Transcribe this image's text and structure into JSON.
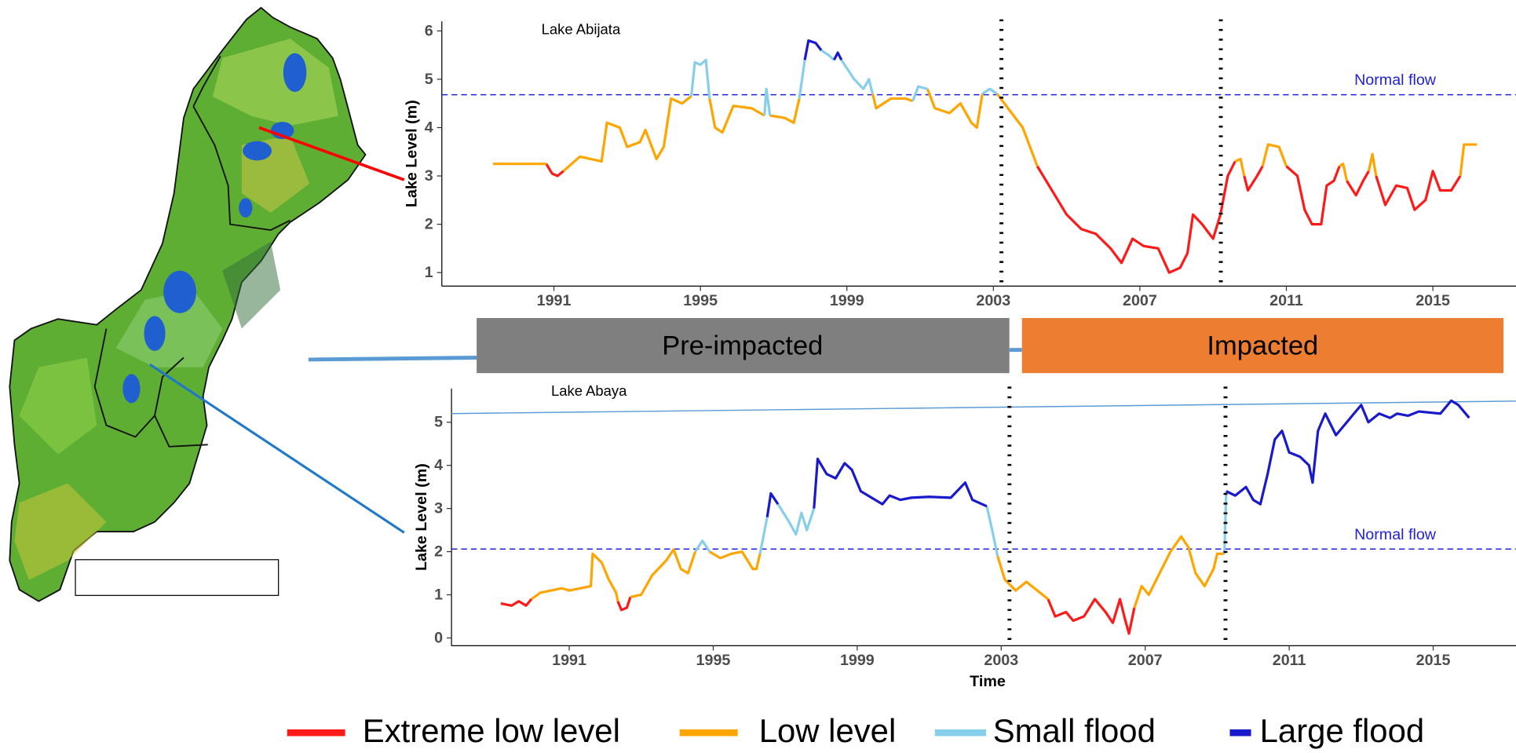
{
  "periods": [
    "Pre-impacted",
    "Impacted"
  ],
  "chart_data": [
    {
      "type": "line",
      "title": "Lake Abijata",
      "y_label": "Lake Level (m)",
      "xlim": [
        1987.94,
        2017.27
      ],
      "xticks": [
        1991,
        1995,
        1999,
        2003,
        2007,
        2011,
        2015
      ],
      "ylim": [
        0.72,
        6.2
      ],
      "yticks": [
        1,
        2,
        3,
        4,
        5,
        6
      ],
      "normal_flow": {
        "label": "Normal flow",
        "value": 4.68
      },
      "vlines": [
        2003.22,
        2009.21
      ],
      "series": [
        {
          "name": "Extreme low level",
          "color": "#ff1a1a",
          "x": [
            1990.79,
            1990.95,
            1991.1,
            1991.26,
            null,
            2004.2,
            2004.6,
            2005.0,
            2005.4,
            2005.8,
            2006.2,
            2006.5,
            2006.8,
            2007.1,
            2007.5,
            2007.8,
            2008.1,
            2008.3,
            2008.45,
            2008.7,
            2009.0,
            2009.2,
            2009.4,
            2009.6,
            null,
            2009.85,
            2009.95,
            2010.2,
            2010.35,
            null,
            2011.0,
            2011.3,
            2011.5,
            2011.7,
            2011.95,
            2012.1,
            2012.3,
            2012.45,
            null,
            2012.65,
            2012.9,
            2013.1,
            2013.25,
            null,
            2013.45,
            2013.7,
            2014.0,
            2014.3,
            2014.5,
            2014.8,
            2015.0,
            2015.2,
            2015.5,
            2015.75
          ],
          "values": [
            3.25,
            3.05,
            3.0,
            3.1,
            null,
            3.2,
            2.7,
            2.2,
            1.9,
            1.8,
            1.5,
            1.2,
            1.7,
            1.55,
            1.5,
            1.0,
            1.1,
            1.4,
            2.2,
            2.0,
            1.7,
            2.2,
            3.0,
            3.3,
            null,
            3.0,
            2.7,
            3.0,
            3.2,
            null,
            3.2,
            3.0,
            2.3,
            2.0,
            2.0,
            2.8,
            2.9,
            3.2,
            null,
            2.9,
            2.6,
            2.9,
            3.1,
            null,
            3.0,
            2.4,
            2.8,
            2.75,
            2.3,
            2.5,
            3.1,
            2.7,
            2.7,
            3.0
          ]
        },
        {
          "name": "Low level",
          "color": "#ffa500",
          "x": [
            1989.34,
            1990.79,
            null,
            1991.26,
            1991.71,
            1992.3,
            1992.45,
            1992.8,
            1993.0,
            1993.35,
            1993.5,
            1993.8,
            1994.0,
            1994.2,
            1994.5,
            1994.75,
            null,
            1995.25,
            1995.4,
            1995.6,
            1995.9,
            1996.4,
            1996.75,
            null,
            1996.9,
            1997.3,
            1997.55,
            1997.7,
            null,
            1999.7,
            1999.8,
            2000.2,
            2000.6,
            2000.8,
            null,
            2001.2,
            2001.4,
            2001.8,
            2002.1,
            2002.4,
            2002.55,
            2002.7,
            null,
            2003.1,
            2003.4,
            2003.8,
            2004.2,
            null,
            2009.6,
            2009.75,
            2009.85,
            null,
            2010.35,
            2010.5,
            2010.8,
            2011.0,
            null,
            2012.45,
            2012.55,
            2012.65,
            null,
            2013.25,
            2013.35,
            2013.45,
            null,
            2015.75,
            2015.85,
            2016.2
          ],
          "values": [
            3.25,
            3.25,
            null,
            3.1,
            3.4,
            3.3,
            4.1,
            4.0,
            3.6,
            3.7,
            3.95,
            3.35,
            3.6,
            4.6,
            4.5,
            4.65,
            null,
            4.6,
            4.0,
            3.9,
            4.45,
            4.4,
            4.25,
            null,
            4.25,
            4.2,
            4.1,
            4.6,
            null,
            4.7,
            4.4,
            4.6,
            4.6,
            4.55,
            null,
            4.8,
            4.4,
            4.3,
            4.5,
            4.1,
            4.0,
            4.7,
            null,
            4.7,
            4.4,
            4.0,
            3.2,
            null,
            3.3,
            3.35,
            3.0,
            null,
            3.2,
            3.65,
            3.6,
            3.2,
            null,
            3.2,
            3.25,
            2.9,
            null,
            3.1,
            3.45,
            3.0,
            null,
            3.0,
            3.65,
            3.65
          ]
        },
        {
          "name": "Small flood",
          "color": "#87ceeb",
          "x": [
            1994.75,
            1994.85,
            1995.0,
            1995.15,
            1995.25,
            null,
            1996.75,
            1996.8,
            1996.9,
            null,
            1997.7,
            1997.85,
            null,
            1998.3,
            1998.5,
            1998.65,
            null,
            1998.85,
            1999.2,
            1999.45,
            1999.6,
            1999.7,
            null,
            2000.8,
            2000.95,
            2001.2,
            null,
            2002.7,
            2002.9,
            2003.1
          ],
          "values": [
            4.65,
            5.35,
            5.3,
            5.4,
            4.6,
            null,
            4.25,
            4.8,
            4.25,
            null,
            4.6,
            5.4,
            null,
            5.6,
            5.5,
            5.4,
            null,
            5.4,
            5.0,
            4.8,
            5.0,
            4.7,
            null,
            4.55,
            4.85,
            4.8,
            null,
            4.7,
            4.8,
            4.7
          ]
        },
        {
          "name": "Large flood",
          "color": "#1a1acd",
          "x": [
            1997.85,
            1997.95,
            1998.15,
            1998.3,
            null,
            1998.65,
            1998.75,
            1998.85
          ],
          "values": [
            5.4,
            5.8,
            5.75,
            5.6,
            null,
            5.4,
            5.55,
            5.4
          ]
        }
      ]
    },
    {
      "type": "line",
      "title": "Lake Abaya",
      "y_label": "Lake Level (m)",
      "x_label": "Time",
      "xlim": [
        1987.73,
        2017.3
      ],
      "xticks": [
        1991,
        1995,
        1999,
        2003,
        2007,
        2011,
        2015
      ],
      "ylim": [
        -0.18,
        5.78
      ],
      "yticks": [
        0,
        1,
        2,
        3,
        4,
        5
      ],
      "normal_flow": {
        "label": "Normal flow",
        "value": 2.06
      },
      "vlines": [
        2003.23,
        2009.23
      ],
      "trend_line": {
        "x": [
          1987.73,
          2017.3
        ],
        "values": [
          5.2,
          5.49
        ],
        "color": "#5b9bd5"
      },
      "series": [
        {
          "color": "#ff1a1a",
          "x": [
            1989.1,
            1989.4,
            1989.6,
            1989.8,
            1989.95,
            null,
            1992.35,
            1992.45,
            1992.6,
            1992.7,
            null,
            2004.3,
            2004.5,
            2004.8,
            2005.0,
            2005.3,
            2005.6,
            2005.9,
            2006.1,
            2006.3,
            2006.45,
            2006.55,
            2006.7
          ],
          "values": [
            0.8,
            0.75,
            0.85,
            0.75,
            0.9,
            null,
            0.85,
            0.65,
            0.7,
            0.95,
            null,
            0.9,
            0.5,
            0.6,
            0.4,
            0.5,
            0.9,
            0.6,
            0.35,
            0.9,
            0.4,
            0.1,
            0.7
          ]
        },
        {
          "color": "#ffa500",
          "x": [
            1989.95,
            1990.2,
            1990.8,
            1991.0,
            1991.6,
            1991.65,
            1991.9,
            1992.1,
            1992.3,
            1992.35,
            null,
            1992.7,
            1993.0,
            1993.3,
            1993.7,
            1993.9,
            1994.1,
            1994.3,
            1994.5,
            null,
            1994.9,
            1995.2,
            1995.5,
            1995.8,
            1996.1,
            1996.2,
            1996.3,
            null,
            2002.9,
            2003.1,
            2003.4,
            2003.7,
            2004.0,
            2004.3,
            null,
            2006.7,
            2006.9,
            2007.1,
            2007.4,
            2007.7,
            2008.0,
            2008.2,
            2008.4,
            2008.65,
            2008.9,
            2009.0,
            2009.2
          ],
          "values": [
            0.9,
            1.05,
            1.15,
            1.1,
            1.2,
            1.95,
            1.75,
            1.35,
            1.05,
            0.85,
            null,
            0.95,
            1.0,
            1.45,
            1.8,
            2.05,
            1.6,
            1.5,
            2.0,
            null,
            2.0,
            1.85,
            1.95,
            2.0,
            1.6,
            1.6,
            1.95,
            null,
            1.9,
            1.35,
            1.1,
            1.3,
            1.1,
            0.9,
            null,
            0.7,
            1.2,
            1.0,
            1.5,
            2.0,
            2.35,
            2.1,
            1.5,
            1.2,
            1.6,
            1.95,
            1.95
          ]
        },
        {
          "color": "#87ceeb",
          "x": [
            1994.5,
            1994.7,
            1994.9,
            null,
            1996.3,
            1996.5,
            null,
            1996.8,
            1997.1,
            1997.3,
            1997.45,
            1997.6,
            1997.8,
            null,
            2002.6,
            2002.75,
            2002.9,
            null,
            2009.2,
            2009.25
          ],
          "values": [
            2.0,
            2.25,
            2.0,
            null,
            1.95,
            2.8,
            null,
            3.1,
            2.7,
            2.4,
            2.9,
            2.5,
            3.0,
            null,
            3.05,
            2.5,
            1.9,
            null,
            1.95,
            3.4
          ]
        },
        {
          "color": "#1a1acd",
          "x": [
            1996.5,
            1996.6,
            1996.8,
            null,
            1997.8,
            1997.9,
            1998.15,
            1998.4,
            1998.65,
            1998.85,
            1999.1,
            1999.4,
            1999.7,
            1999.9,
            2000.2,
            2000.5,
            2001.0,
            2001.6,
            2002.0,
            2002.2,
            2002.6,
            null,
            2009.25,
            2009.5,
            2009.8,
            2010.0,
            2010.2,
            2010.4,
            2010.6,
            2010.8,
            2011.0,
            2011.3,
            2011.55,
            2011.65,
            2011.8,
            2012.0,
            2012.3,
            2012.6,
            2012.8,
            2013.0,
            2013.2,
            2013.5,
            2013.8,
            2014.0,
            2014.3,
            2014.6,
            2015.2,
            2015.5,
            2015.7,
            2016.0
          ],
          "values": [
            2.8,
            3.35,
            3.1,
            null,
            3.0,
            4.15,
            3.8,
            3.7,
            4.05,
            3.9,
            3.4,
            3.25,
            3.1,
            3.3,
            3.2,
            3.25,
            3.27,
            3.25,
            3.6,
            3.2,
            3.05,
            null,
            3.4,
            3.3,
            3.5,
            3.2,
            3.1,
            3.8,
            4.6,
            4.8,
            4.3,
            4.2,
            4.0,
            3.6,
            4.8,
            5.2,
            4.7,
            5.0,
            5.2,
            5.4,
            5.0,
            5.2,
            5.1,
            5.2,
            5.15,
            5.25,
            5.2,
            5.5,
            5.4,
            5.1
          ]
        }
      ]
    }
  ]
}
